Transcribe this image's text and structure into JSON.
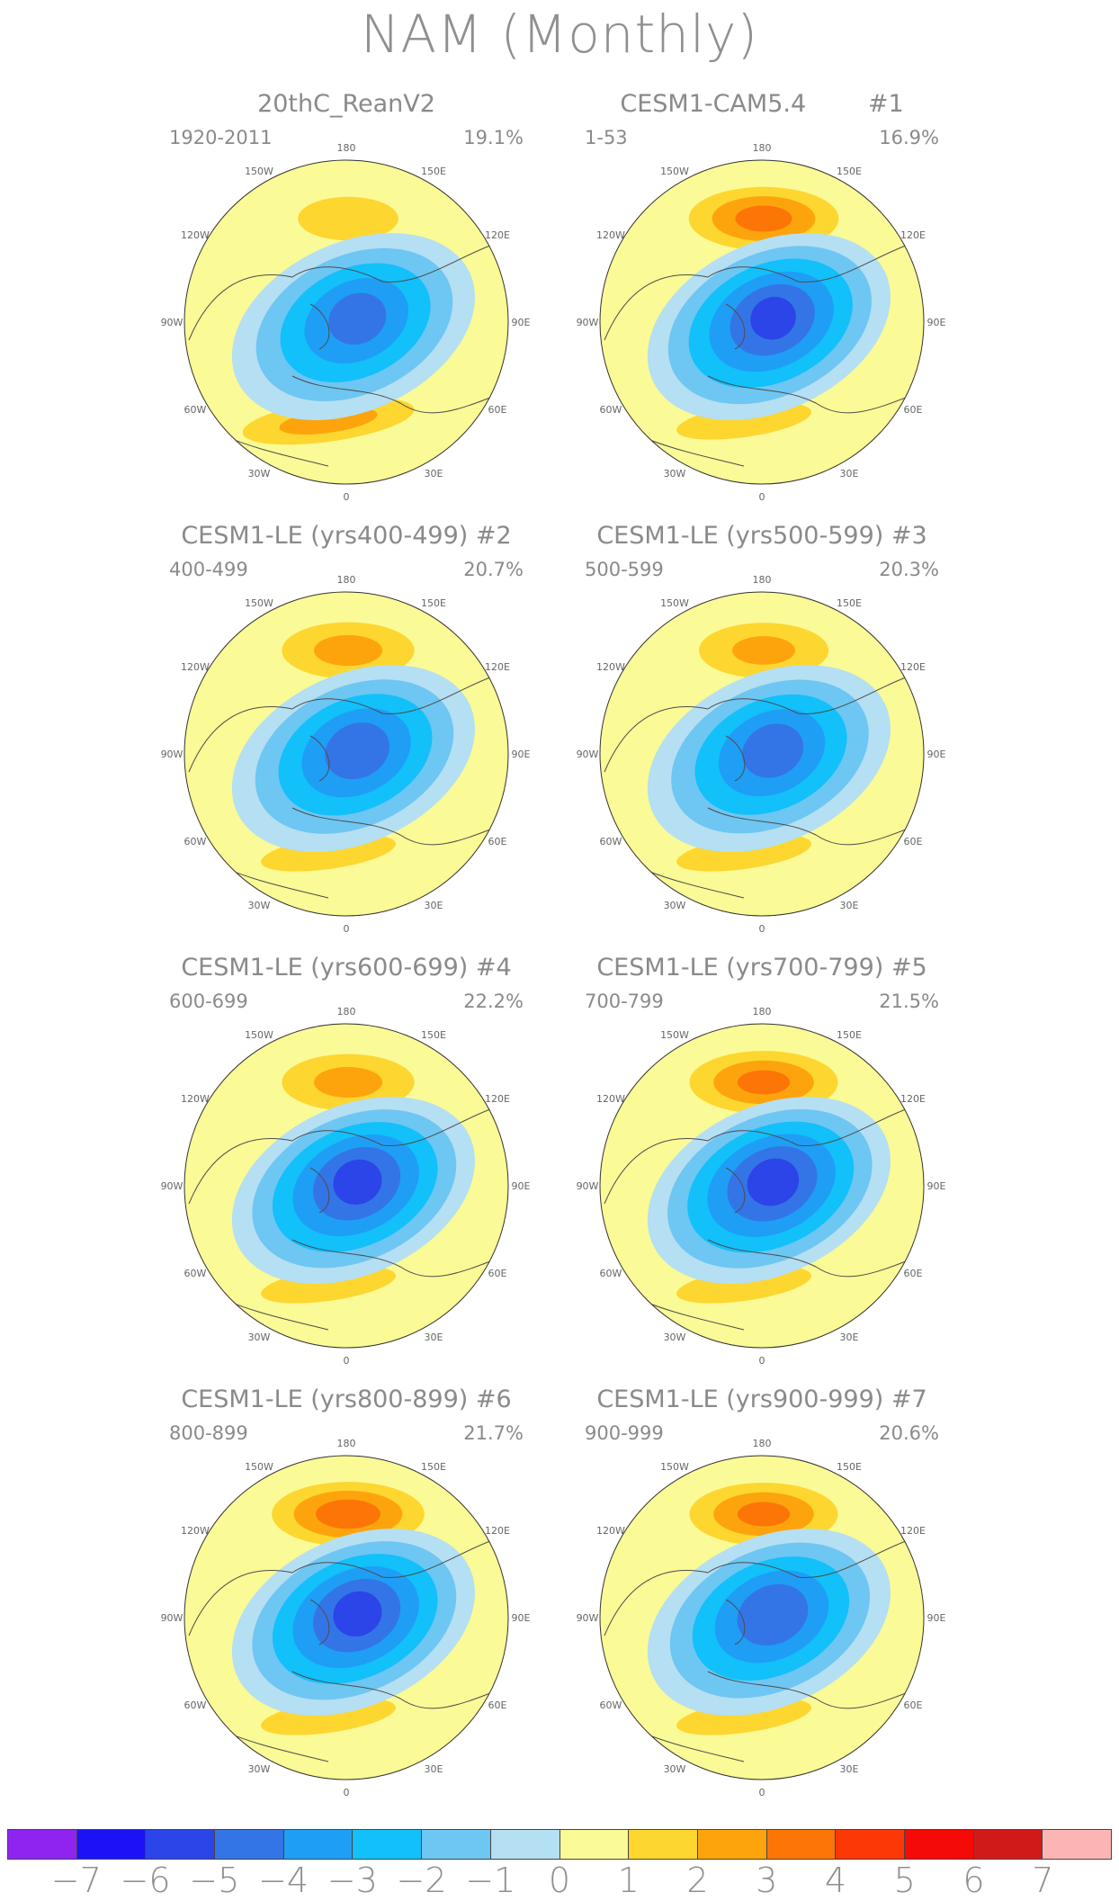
{
  "page_title": "NAM (Monthly)",
  "longitude_labels": {
    "lon_180": "180",
    "lon_150w": "150W",
    "lon_150e": "150E",
    "lon_120w": "120W",
    "lon_120e": "120E",
    "lon_90w": "90W",
    "lon_90e": "90E",
    "lon_60w": "60W",
    "lon_60e": "60E",
    "lon_30w": "30W",
    "lon_30e": "30E",
    "lon_0": "0"
  },
  "panels": [
    {
      "title": "20thC_ReanV2",
      "range": "1920-2011",
      "pct": "19.1%",
      "center_min": -5.2,
      "pacific_max": 1.6,
      "atlantic_max": 2.4
    },
    {
      "title": "CESM1-CAM5.4        #1",
      "range": "1-53",
      "pct": "16.9%",
      "center_min": -6.1,
      "pacific_max": 3.3,
      "atlantic_max": 1.6
    },
    {
      "title": "CESM1-LE (yrs400-499) #2",
      "range": "400-499",
      "pct": "20.7%",
      "center_min": -5.4,
      "pacific_max": 2.4,
      "atlantic_max": 1.6
    },
    {
      "title": "CESM1-LE (yrs500-599) #3",
      "range": "500-599",
      "pct": "20.3%",
      "center_min": -5.3,
      "pacific_max": 2.3,
      "atlantic_max": 1.6
    },
    {
      "title": "CESM1-LE (yrs600-699) #4",
      "range": "600-699",
      "pct": "22.2%",
      "center_min": -6.2,
      "pacific_max": 2.4,
      "atlantic_max": 1.6
    },
    {
      "title": "CESM1-LE (yrs700-799) #5",
      "range": "700-799",
      "pct": "21.5%",
      "center_min": -6.3,
      "pacific_max": 3.2,
      "atlantic_max": 1.6
    },
    {
      "title": "CESM1-LE (yrs800-899) #6",
      "range": "800-899",
      "pct": "21.7%",
      "center_min": -6.2,
      "pacific_max": 3.5,
      "atlantic_max": 1.6
    },
    {
      "title": "CESM1-LE (yrs900-999) #7",
      "range": "900-999",
      "pct": "20.6%",
      "center_min": -5.6,
      "pacific_max": 3.2,
      "atlantic_max": 1.6
    }
  ],
  "colorbar": {
    "colors": [
      "#8f24f0",
      "#1b12f5",
      "#2b45e8",
      "#3375e6",
      "#1f9ef6",
      "#12c0fa",
      "#6ec6f2",
      "#b5dff2",
      "#fafa96",
      "#fdd630",
      "#fda40c",
      "#fc7507",
      "#fc3806",
      "#f40a06",
      "#d01a1a",
      "#fcb4b4"
    ],
    "labels": [
      "−7",
      "−6",
      "−5",
      "−4",
      "−3",
      "−2",
      "−1",
      "0",
      "1",
      "2",
      "3",
      "4",
      "5",
      "6",
      "7"
    ]
  },
  "chart_data": {
    "type": "heatmap",
    "title": "NAM (Monthly)",
    "projection": "north polar stereographic",
    "contour_levels": [
      -7,
      -6,
      -5,
      -4,
      -3,
      -2,
      -1,
      0,
      1,
      2,
      3,
      4,
      5,
      6,
      7
    ],
    "series": [
      {
        "name": "20thC_ReanV2",
        "years": "1920-2011",
        "variance_explained": 19.1
      },
      {
        "name": "CESM1-CAM5.4 #1",
        "years": "1-53",
        "variance_explained": 16.9
      },
      {
        "name": "CESM1-LE (yrs400-499) #2",
        "years": "400-499",
        "variance_explained": 20.7
      },
      {
        "name": "CESM1-LE (yrs500-599) #3",
        "years": "500-599",
        "variance_explained": 20.3
      },
      {
        "name": "CESM1-LE (yrs600-699) #4",
        "years": "600-699",
        "variance_explained": 22.2
      },
      {
        "name": "CESM1-LE (yrs700-799) #5",
        "years": "700-799",
        "variance_explained": 21.5
      },
      {
        "name": "CESM1-LE (yrs800-899) #6",
        "years": "800-899",
        "variance_explained": 21.7
      },
      {
        "name": "CESM1-LE (yrs900-999) #7",
        "years": "900-999",
        "variance_explained": 20.6
      }
    ]
  }
}
